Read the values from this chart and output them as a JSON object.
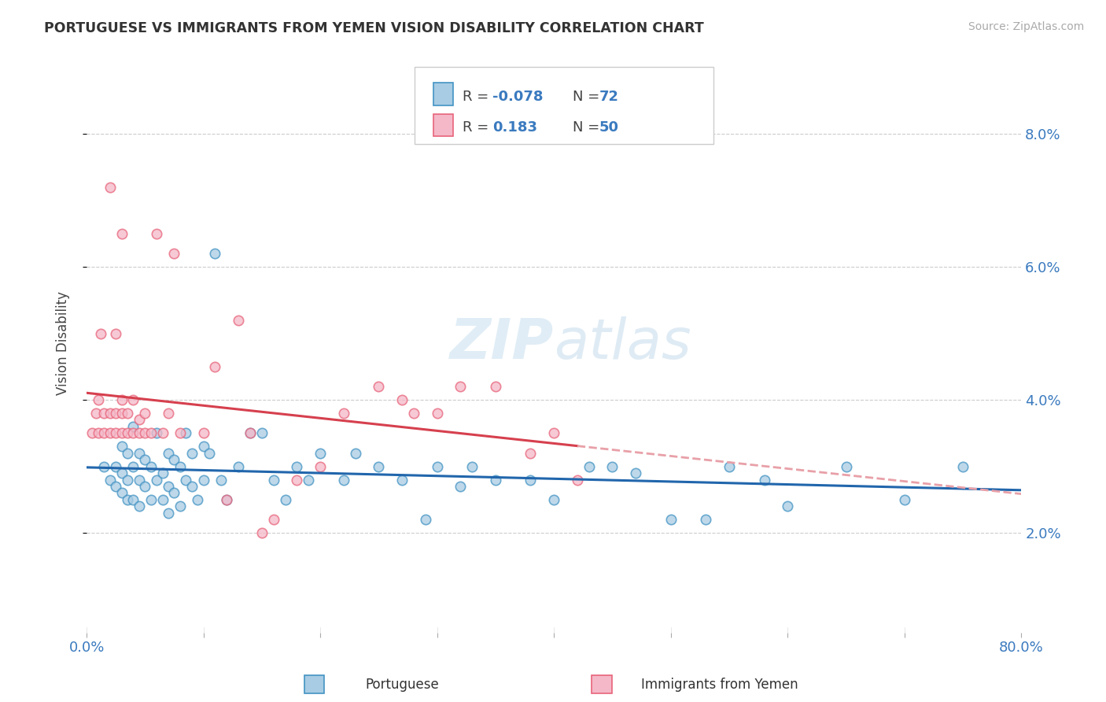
{
  "title": "PORTUGUESE VS IMMIGRANTS FROM YEMEN VISION DISABILITY CORRELATION CHART",
  "source": "Source: ZipAtlas.com",
  "ylabel": "Vision Disability",
  "xlim": [
    0.0,
    0.8
  ],
  "ylim": [
    0.005,
    0.092
  ],
  "yticks": [
    0.02,
    0.04,
    0.06,
    0.08
  ],
  "ytick_labels": [
    "2.0%",
    "4.0%",
    "6.0%",
    "8.0%"
  ],
  "xticks": [
    0.0,
    0.1,
    0.2,
    0.3,
    0.4,
    0.5,
    0.6,
    0.7,
    0.8
  ],
  "blue_color": "#a8cce4",
  "pink_color": "#f4b8c8",
  "blue_edge_color": "#4393c3",
  "pink_edge_color": "#e8647a",
  "blue_line_color": "#2166ac",
  "pink_line_color": "#d6404e",
  "pink_dash_color": "#e8a0a8",
  "label1": "Portuguese",
  "label2": "Immigrants from Yemen",
  "blue_scatter_x": [
    0.015,
    0.02,
    0.025,
    0.025,
    0.03,
    0.03,
    0.03,
    0.035,
    0.035,
    0.035,
    0.04,
    0.04,
    0.04,
    0.045,
    0.045,
    0.045,
    0.05,
    0.05,
    0.055,
    0.055,
    0.06,
    0.06,
    0.065,
    0.065,
    0.07,
    0.07,
    0.07,
    0.075,
    0.075,
    0.08,
    0.08,
    0.085,
    0.085,
    0.09,
    0.09,
    0.095,
    0.1,
    0.1,
    0.105,
    0.11,
    0.115,
    0.12,
    0.13,
    0.14,
    0.15,
    0.16,
    0.17,
    0.18,
    0.19,
    0.2,
    0.22,
    0.23,
    0.25,
    0.27,
    0.29,
    0.3,
    0.32,
    0.33,
    0.35,
    0.38,
    0.4,
    0.43,
    0.45,
    0.47,
    0.5,
    0.53,
    0.55,
    0.58,
    0.6,
    0.65,
    0.7,
    0.75
  ],
  "blue_scatter_y": [
    0.03,
    0.028,
    0.027,
    0.03,
    0.026,
    0.029,
    0.033,
    0.025,
    0.028,
    0.032,
    0.025,
    0.03,
    0.036,
    0.024,
    0.028,
    0.032,
    0.027,
    0.031,
    0.025,
    0.03,
    0.028,
    0.035,
    0.025,
    0.029,
    0.023,
    0.027,
    0.032,
    0.026,
    0.031,
    0.024,
    0.03,
    0.028,
    0.035,
    0.027,
    0.032,
    0.025,
    0.033,
    0.028,
    0.032,
    0.062,
    0.028,
    0.025,
    0.03,
    0.035,
    0.035,
    0.028,
    0.025,
    0.03,
    0.028,
    0.032,
    0.028,
    0.032,
    0.03,
    0.028,
    0.022,
    0.03,
    0.027,
    0.03,
    0.028,
    0.028,
    0.025,
    0.03,
    0.03,
    0.029,
    0.022,
    0.022,
    0.03,
    0.028,
    0.024,
    0.03,
    0.025,
    0.03
  ],
  "pink_scatter_x": [
    0.005,
    0.008,
    0.01,
    0.01,
    0.012,
    0.015,
    0.015,
    0.02,
    0.02,
    0.02,
    0.025,
    0.025,
    0.025,
    0.03,
    0.03,
    0.03,
    0.03,
    0.035,
    0.035,
    0.04,
    0.04,
    0.045,
    0.045,
    0.05,
    0.05,
    0.055,
    0.06,
    0.065,
    0.07,
    0.075,
    0.08,
    0.1,
    0.11,
    0.12,
    0.13,
    0.14,
    0.15,
    0.16,
    0.18,
    0.2,
    0.22,
    0.25,
    0.27,
    0.28,
    0.3,
    0.32,
    0.35,
    0.38,
    0.4,
    0.42
  ],
  "pink_scatter_y": [
    0.035,
    0.038,
    0.035,
    0.04,
    0.05,
    0.035,
    0.038,
    0.035,
    0.038,
    0.072,
    0.035,
    0.038,
    0.05,
    0.035,
    0.038,
    0.04,
    0.065,
    0.035,
    0.038,
    0.035,
    0.04,
    0.035,
    0.037,
    0.035,
    0.038,
    0.035,
    0.065,
    0.035,
    0.038,
    0.062,
    0.035,
    0.035,
    0.045,
    0.025,
    0.052,
    0.035,
    0.02,
    0.022,
    0.028,
    0.03,
    0.038,
    0.042,
    0.04,
    0.038,
    0.038,
    0.042,
    0.042,
    0.032,
    0.035,
    0.028
  ]
}
